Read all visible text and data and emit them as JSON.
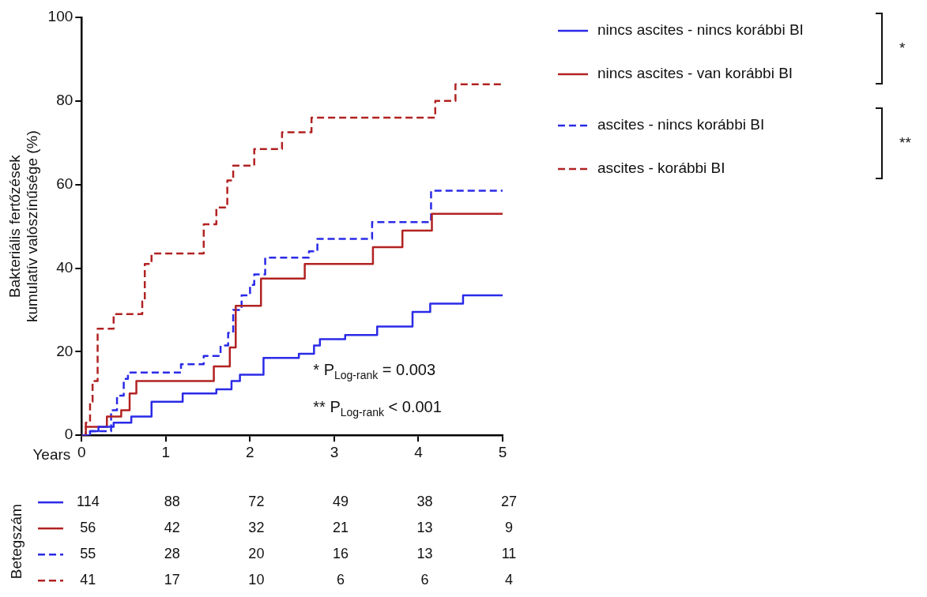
{
  "chart_data": {
    "type": "step",
    "xlabel": "Years",
    "ylabel": "Bakteriális fertőzések kumulatív valószínűsége (%)",
    "xlim": [
      0,
      5
    ],
    "xticks": [
      0,
      1,
      2,
      3,
      4,
      5
    ],
    "ylim": [
      0,
      100
    ],
    "yticks": [
      0,
      20,
      40,
      60,
      80,
      100
    ],
    "grid": false,
    "legend": "top right",
    "series": [
      {
        "name": "nincs ascites - nincs korábbi BI",
        "color": "#2a2ae8",
        "line_style": "solid",
        "x": [
          0,
          0.1,
          0.2,
          0.38,
          0.59,
          0.83,
          1.2,
          1.6,
          1.78,
          1.88,
          2.16,
          2.58,
          2.76,
          2.83,
          3.13,
          3.51,
          3.93,
          4.14,
          4.53,
          5
        ],
        "values": [
          0,
          1,
          2,
          3,
          4.5,
          8,
          10,
          11,
          13,
          14.5,
          18.5,
          19.5,
          21.5,
          23,
          24,
          26,
          29.5,
          31.5,
          33.5,
          33.5
        ]
      },
      {
        "name": "nincs ascites - van korábbi BI",
        "color": "#b22222",
        "line_style": "solid",
        "x": [
          0,
          0.05,
          0.3,
          0.47,
          0.57,
          0.65,
          1.57,
          1.76,
          1.83,
          2.13,
          2.65,
          3.46,
          3.81,
          4.16,
          5
        ],
        "values": [
          0,
          2,
          4.5,
          6,
          10,
          13,
          16.5,
          21,
          31,
          37.5,
          41,
          45,
          49,
          53,
          53
        ]
      },
      {
        "name": "ascites - nincs korábbi BI",
        "color": "#2a2ae8",
        "line_style": "dashed",
        "x": [
          0,
          0.1,
          0.35,
          0.42,
          0.5,
          0.55,
          1.18,
          1.45,
          1.65,
          1.74,
          1.8,
          1.9,
          2.0,
          2.05,
          2.18,
          2.7,
          2.8,
          3.45,
          4.15,
          5
        ],
        "values": [
          0,
          1,
          6,
          9.5,
          13.5,
          15,
          17,
          19,
          21.5,
          24.5,
          30,
          33.5,
          36,
          38.5,
          42.5,
          44,
          47,
          51,
          58.5,
          58.5
        ]
      },
      {
        "name": "ascites - korábbi BI",
        "color": "#b22222",
        "line_style": "dashed",
        "x": [
          0,
          0.05,
          0.1,
          0.13,
          0.19,
          0.38,
          0.72,
          0.75,
          0.83,
          1.45,
          1.6,
          1.73,
          1.8,
          2.05,
          2.38,
          2.73,
          4.2,
          4.44,
          5
        ],
        "values": [
          0,
          3,
          8,
          13,
          25.5,
          29,
          32,
          41,
          43.5,
          50.5,
          54.5,
          61,
          64.5,
          68.5,
          72.5,
          76,
          80,
          84,
          84
        ]
      }
    ],
    "annotations": [
      "*",
      "**",
      "* P$_{Log-rank}$ = 0.003",
      "** P$_{Log-rank}$ < 0.001",
      "Betegszám",
      "114",
      "88",
      "72",
      "49",
      "38",
      "27",
      "56",
      "42",
      "32",
      "21",
      "13",
      "9",
      "55",
      "28",
      "20",
      "16",
      "13",
      "11",
      "41",
      "17",
      "10",
      "6",
      "6",
      "4"
    ]
  }
}
